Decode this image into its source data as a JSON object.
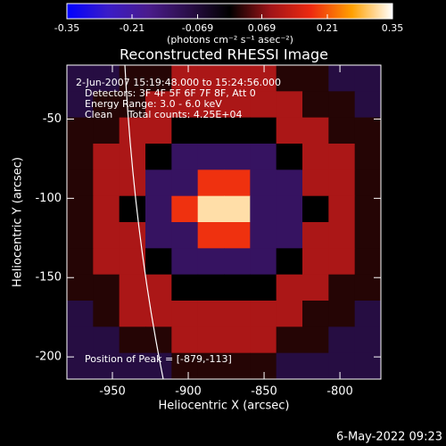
{
  "chart_data": {
    "type": "heatmap",
    "title": "Reconstructed RHESSI Image",
    "xlabel": "Heliocentric X (arcsec)",
    "ylabel": "Heliocentric Y (arcsec)",
    "xlim": [
      -980,
      -773
    ],
    "ylim": [
      -214,
      -16
    ],
    "xticks": [
      -950,
      -900,
      -850,
      -800
    ],
    "yticks": [
      -50,
      -100,
      -150,
      -200
    ],
    "colorbar_label": "(photons cm⁻² s⁻¹ asec⁻²)",
    "clim": [
      -0.35,
      0.35
    ],
    "cticks": [
      -0.35,
      -0.21,
      -0.069,
      0.069,
      0.21,
      0.35
    ],
    "colormap": [
      "#0000ff",
      "#3a1cc8",
      "#4a1c8c",
      "#2a0e48",
      "#000000",
      "#a01418",
      "#ee2a10",
      "#ffa000",
      "#ffffff"
    ],
    "annotations": [
      "2-Jun-2007 15:19:48.000 to 15:24:56.000",
      "Detectors: 3F 4F 5F 6F 7F 8F, Att 0",
      "Energy Range: 3.0 - 6.0 keV",
      "Clean     Total counts: 4.25E+04"
    ],
    "peak_label": "Position of Peak = [-879,-113]",
    "timestamp": "6-May-2022 09:23",
    "z": [
      [
        -0.08,
        -0.08,
        0.02,
        0.02,
        0.1,
        0.1,
        0.1,
        0.1,
        0.02,
        0.02,
        -0.08,
        -0.08
      ],
      [
        -0.08,
        0.02,
        0.02,
        0.1,
        0.1,
        0.1,
        0.1,
        0.1,
        0.1,
        0.02,
        0.02,
        -0.08
      ],
      [
        0.02,
        0.02,
        0.1,
        0.1,
        0,
        0,
        0,
        0,
        0.1,
        0.1,
        0.02,
        0.02
      ],
      [
        0.02,
        0.1,
        0.1,
        0,
        -0.12,
        -0.12,
        -0.12,
        -0.12,
        0,
        0.1,
        0.1,
        0.02
      ],
      [
        0.02,
        0.1,
        0.1,
        -0.12,
        -0.12,
        0.18,
        0.18,
        -0.12,
        -0.12,
        0.1,
        0.1,
        0.02
      ],
      [
        0.02,
        0.1,
        0,
        -0.12,
        0.18,
        0.32,
        0.32,
        -0.12,
        -0.12,
        0,
        0.1,
        0.02
      ],
      [
        0.02,
        0.1,
        0.1,
        -0.12,
        -0.12,
        0.18,
        0.18,
        -0.12,
        -0.12,
        0.1,
        0.1,
        0.02
      ],
      [
        0.02,
        0.1,
        0.1,
        0,
        -0.12,
        -0.12,
        -0.12,
        -0.12,
        0,
        0.1,
        0.1,
        0.02
      ],
      [
        0.02,
        0.02,
        0.1,
        0.1,
        0,
        0,
        0,
        0,
        0.1,
        0.1,
        0.02,
        0.02
      ],
      [
        -0.08,
        0.02,
        0.1,
        0.1,
        0.1,
        0.1,
        0.1,
        0.1,
        0.1,
        0.02,
        0.02,
        -0.08
      ],
      [
        -0.08,
        -0.08,
        0.02,
        0.02,
        0.1,
        0.1,
        0.1,
        0.1,
        0.02,
        0.02,
        -0.08,
        -0.08
      ],
      [
        -0.08,
        -0.08,
        -0.08,
        -0.08,
        0.02,
        0.02,
        0.02,
        0.02,
        -0.08,
        -0.08,
        -0.08,
        -0.08
      ]
    ]
  }
}
